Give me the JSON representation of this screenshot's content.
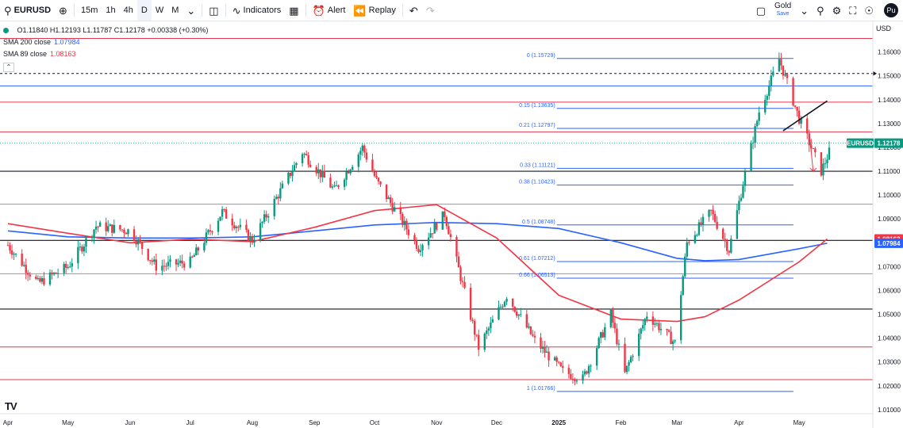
{
  "toolbar": {
    "symbol": "EURUSD",
    "add_symbol_icon": "plus-circle-icon",
    "intervals": [
      "15m",
      "1h",
      "4h",
      "D",
      "W",
      "M"
    ],
    "active_interval": "D",
    "indicators_label": "Indicators",
    "alert_label": "Alert",
    "replay_label": "Replay",
    "layout_name": "Gold",
    "save_label": "Save",
    "publish_label": "Pu"
  },
  "legend": {
    "ohlc": "O1.11840  H1.12193  L1.11787  C1.12178  +0.00338 (+0.30%)",
    "sma200_label": "SMA 200 close",
    "sma200_value": "1.07984",
    "sma89_label": "SMA 89 close",
    "sma89_value": "1.08163",
    "collapse_icon": "chevron-up-icon"
  },
  "axis": {
    "currency": "USD",
    "price_ticks": [
      "1.16000",
      "1.15000",
      "1.14000",
      "1.13000",
      "1.12000",
      "1.11000",
      "1.10000",
      "1.09000",
      "1.08000",
      "1.07000",
      "1.06000",
      "1.05000",
      "1.04000",
      "1.03000",
      "1.02000",
      "1.01000"
    ],
    "months": [
      "Apr",
      "May",
      "Jun",
      "Jul",
      "Aug",
      "Sep",
      "Oct",
      "Nov",
      "Dec",
      "2025",
      "Feb",
      "Mar",
      "Apr",
      "May"
    ]
  },
  "price_labels": {
    "eurusd_tag": "EURUSD",
    "last": "1.12178",
    "sma89_tag": "1.08163",
    "sma200_tag": "1.07984"
  },
  "colors": {
    "up": "#089981",
    "down": "#f23645",
    "sma200": "#2962ff",
    "sma89": "#f23645",
    "fib": "#2962ff",
    "red_level": "#e0384f",
    "blue_level": "#2962ff"
  },
  "watermark": "TV",
  "chart_data": {
    "type": "candlestick",
    "symbol": "EURUSD",
    "timeframe": "D",
    "y_range": [
      1.0083,
      1.1672
    ],
    "x_domain": [
      "2024-04-01",
      "2025-05-31"
    ],
    "horizontal_levels": [
      {
        "price": 1.1657,
        "color": "red"
      },
      {
        "price": 1.151,
        "color": "black",
        "style": "dotted"
      },
      {
        "price": 1.1458,
        "color": "blue"
      },
      {
        "price": 1.139,
        "color": "red"
      },
      {
        "price": 1.1265,
        "color": "red"
      },
      {
        "price": 1.11,
        "color": "black"
      },
      {
        "price": 1.0962,
        "color": "gray"
      },
      {
        "price": 1.081,
        "color": "black"
      },
      {
        "price": 1.067,
        "color": "gray"
      },
      {
        "price": 1.0522,
        "color": "black"
      },
      {
        "price": 1.0363,
        "color": "red"
      },
      {
        "price": 1.0226,
        "color": "red"
      }
    ],
    "fib_levels": [
      {
        "label": "0 (1.15729)",
        "price": 1.15729
      },
      {
        "label": "0.15 (1.13635)",
        "price": 1.13635
      },
      {
        "label": "0.21 (1.12797)",
        "price": 1.12797
      },
      {
        "label": "0.33 (1.11121)",
        "price": 1.11121
      },
      {
        "label": "0.38 (1.10423)",
        "price": 1.10423
      },
      {
        "label": "0.5 (1.08748)",
        "price": 1.08748
      },
      {
        "label": "0.61 (1.07212)",
        "price": 1.07212
      },
      {
        "label": "0.66 (1.06513)",
        "price": 1.06513
      },
      {
        "label": "1 (1.01766)",
        "price": 1.01766
      }
    ],
    "trendline": {
      "from": [
        "2025-04-23",
        1.127
      ],
      "to": [
        "2025-05-15",
        1.1395
      ]
    },
    "arrow": {
      "from": [
        "2025-05-06",
        1.1265
      ],
      "to": [
        "2025-05-08",
        1.11
      ]
    },
    "last_price": 1.12178,
    "series": [
      {
        "name": "SMA 200 close",
        "color": "#2962ff",
        "points": [
          [
            "2024-04-01",
            1.085
          ],
          [
            "2024-05-01",
            1.0825
          ],
          [
            "2024-06-01",
            1.082
          ],
          [
            "2024-07-01",
            1.082
          ],
          [
            "2024-08-01",
            1.0825
          ],
          [
            "2024-09-01",
            1.085
          ],
          [
            "2024-10-01",
            1.0875
          ],
          [
            "2024-11-01",
            1.0885
          ],
          [
            "2024-12-01",
            1.088
          ],
          [
            "2025-01-01",
            1.086
          ],
          [
            "2025-02-01",
            1.08
          ],
          [
            "2025-03-01",
            1.0735
          ],
          [
            "2025-03-15",
            1.0725
          ],
          [
            "2025-04-01",
            1.073
          ],
          [
            "2025-05-01",
            1.0775
          ],
          [
            "2025-05-15",
            1.0798
          ]
        ]
      },
      {
        "name": "SMA 89 close",
        "color": "#f23645",
        "points": [
          [
            "2024-04-01",
            1.088
          ],
          [
            "2024-05-01",
            1.084
          ],
          [
            "2024-06-01",
            1.08
          ],
          [
            "2024-07-01",
            1.0815
          ],
          [
            "2024-08-01",
            1.0805
          ],
          [
            "2024-09-01",
            1.0865
          ],
          [
            "2024-10-01",
            1.0935
          ],
          [
            "2024-11-01",
            1.096
          ],
          [
            "2024-12-01",
            1.082
          ],
          [
            "2025-01-01",
            1.058
          ],
          [
            "2025-02-01",
            1.048
          ],
          [
            "2025-03-01",
            1.047
          ],
          [
            "2025-03-15",
            1.049
          ],
          [
            "2025-04-01",
            1.056
          ],
          [
            "2025-05-01",
            1.072
          ],
          [
            "2025-05-15",
            1.0816
          ]
        ]
      }
    ],
    "price_path": [
      [
        "2024-04-01",
        1.079
      ],
      [
        "2024-04-16",
        1.063
      ],
      [
        "2024-05-01",
        1.07
      ],
      [
        "2024-05-15",
        1.087
      ],
      [
        "2024-06-01",
        1.085
      ],
      [
        "2024-06-14",
        1.07
      ],
      [
        "2024-07-01",
        1.072
      ],
      [
        "2024-07-17",
        1.093
      ],
      [
        "2024-08-01",
        1.081
      ],
      [
        "2024-08-26",
        1.118
      ],
      [
        "2024-09-11",
        1.102
      ],
      [
        "2024-09-25",
        1.12
      ],
      [
        "2024-10-02",
        1.106
      ],
      [
        "2024-10-23",
        1.078
      ],
      [
        "2024-11-05",
        1.092
      ],
      [
        "2024-11-22",
        1.036
      ],
      [
        "2024-12-06",
        1.058
      ],
      [
        "2024-12-20",
        1.039
      ],
      [
        "2025-01-03",
        1.026
      ],
      [
        "2025-01-13",
        1.023
      ],
      [
        "2025-01-27",
        1.05
      ],
      [
        "2025-02-03",
        1.025
      ],
      [
        "2025-02-14",
        1.05
      ],
      [
        "2025-02-28",
        1.038
      ],
      [
        "2025-03-06",
        1.08
      ],
      [
        "2025-03-18",
        1.093
      ],
      [
        "2025-03-27",
        1.077
      ],
      [
        "2025-04-03",
        1.105
      ],
      [
        "2025-04-11",
        1.135
      ],
      [
        "2025-04-21",
        1.157
      ],
      [
        "2025-05-01",
        1.132
      ],
      [
        "2025-05-12",
        1.11
      ],
      [
        "2025-05-16",
        1.118
      ],
      [
        "2025-05-20",
        1.1218
      ]
    ]
  }
}
